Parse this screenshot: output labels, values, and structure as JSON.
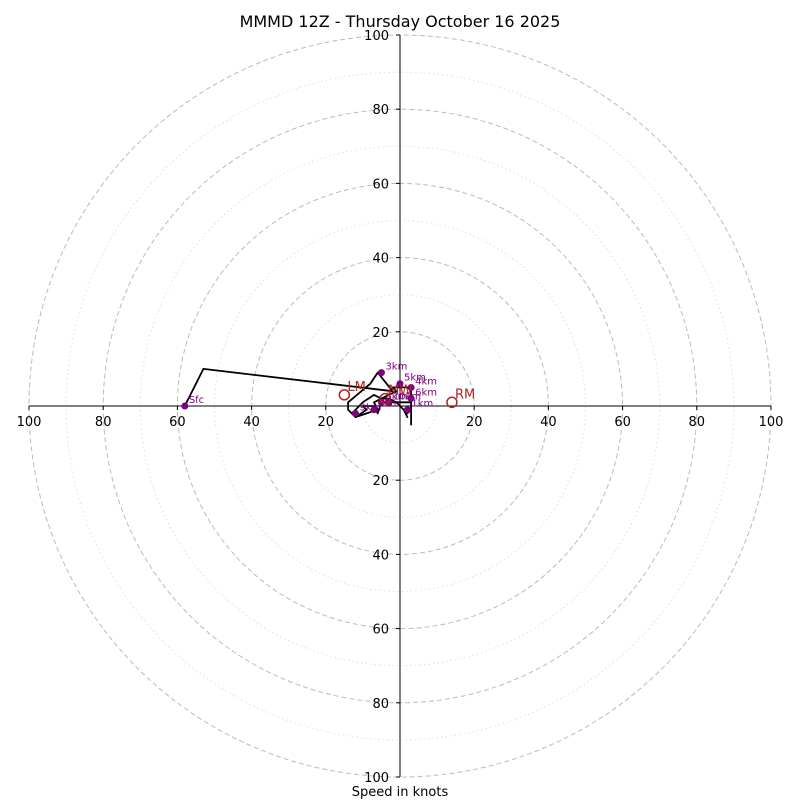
{
  "chart_data": {
    "type": "hodograph",
    "title": "MMMD 12Z - Thursday October 16 2025",
    "xlabel": "Speed in knots",
    "ylabel": "",
    "units": "knots",
    "xlim": [
      -100,
      100
    ],
    "ylim": [
      -100,
      100
    ],
    "ring_major": [
      20,
      40,
      60,
      80,
      100
    ],
    "ring_minor": [
      10,
      30,
      50,
      70,
      90
    ],
    "x_tick_labels": [
      "100",
      "80",
      "60",
      "40",
      "20",
      "20",
      "40",
      "60",
      "80",
      "100"
    ],
    "y_tick_labels": [
      "100",
      "80",
      "60",
      "40",
      "20",
      "20",
      "40",
      "60",
      "80",
      "100"
    ],
    "hodograph_trace": [
      [
        -58,
        0
      ],
      [
        -53,
        10
      ],
      [
        -2,
        4
      ],
      [
        -6,
        9
      ],
      [
        -8,
        6
      ],
      [
        -14,
        1
      ],
      [
        -14,
        -1
      ],
      [
        -12,
        -3
      ],
      [
        -9,
        -2
      ],
      [
        -6,
        -1
      ],
      [
        -7,
        1
      ],
      [
        -5,
        2
      ],
      [
        -3,
        2
      ],
      [
        -1,
        1
      ],
      [
        1,
        -1
      ],
      [
        2,
        -3
      ],
      [
        1,
        -1
      ],
      [
        2,
        -2
      ],
      [
        3,
        -1
      ],
      [
        3,
        -4
      ],
      [
        3,
        -5
      ],
      [
        3,
        0
      ],
      [
        3,
        2
      ],
      [
        3,
        3
      ],
      [
        3,
        4
      ],
      [
        2,
        5
      ],
      [
        -2,
        5
      ],
      [
        -1,
        4
      ],
      [
        -5,
        2
      ],
      [
        -7,
        3
      ],
      [
        -10,
        1
      ],
      [
        -12,
        -1
      ],
      [
        -13,
        -2
      ],
      [
        -12,
        -3
      ],
      [
        -9,
        -1
      ],
      [
        -10,
        0
      ],
      [
        -7,
        0
      ],
      [
        -6,
        -2
      ],
      [
        -5,
        1
      ],
      [
        -3,
        1
      ],
      [
        0,
        1
      ],
      [
        3,
        1
      ],
      [
        3,
        2
      ]
    ],
    "height_markers": [
      {
        "label": "Sfc",
        "u": -58,
        "v": 0
      },
      {
        "label": "3km",
        "u": -5,
        "v": 9
      },
      {
        "label": "4km",
        "u": 3,
        "v": 5
      },
      {
        "label": "5km",
        "u": 0,
        "v": 6
      },
      {
        "label": "6km",
        "u": 3,
        "v": 2
      },
      {
        "label": "7km",
        "u": -7,
        "v": -1
      },
      {
        "label": "8km",
        "u": -5,
        "v": 1
      },
      {
        "label": "9km",
        "u": -12,
        "v": -2
      },
      {
        "label": "1km",
        "u": 2,
        "v": -1
      },
      {
        "label": "10km",
        "u": -3,
        "v": 1
      }
    ],
    "storm_motions": [
      {
        "label": "LM",
        "u": -15,
        "v": 3
      },
      {
        "label": "RM",
        "u": 14,
        "v": 1
      },
      {
        "label": "MW",
        "u": -4,
        "v": 2
      }
    ],
    "colors": {
      "trace": "#000000",
      "markers": "#800080",
      "storm_motion": "#b22222",
      "ring_major": "#bbbbbb",
      "ring_minor": "#dddddd",
      "axes": "#000000"
    }
  }
}
